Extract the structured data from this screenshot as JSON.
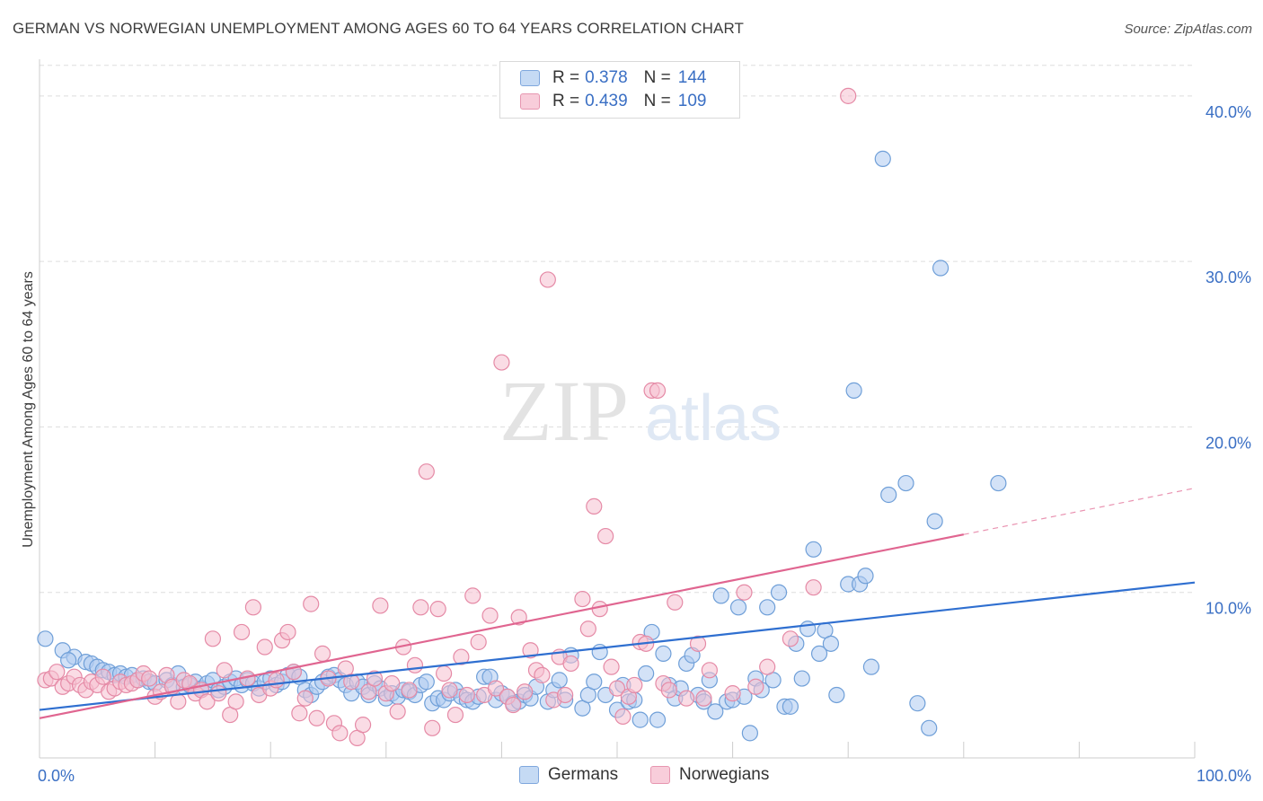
{
  "title": "GERMAN VS NORWEGIAN UNEMPLOYMENT AMONG AGES 60 TO 64 YEARS CORRELATION CHART",
  "source": "Source: ZipAtlas.com",
  "watermark": {
    "zip": "ZIP",
    "atlas": "atlas"
  },
  "colors": {
    "germans_fill": "#aecbf0",
    "germans_stroke": "#6f9fd8",
    "germans_line": "#2f6fd0",
    "norwegians_fill": "#f6c0d0",
    "norwegians_stroke": "#e58aa6",
    "norwegians_line": "#e06590",
    "axis_text": "#3a6fc4",
    "grid": "#dddddd"
  },
  "legend": {
    "rows": [
      {
        "r_label": "R =",
        "r_value": "0.378",
        "n_label": "N =",
        "n_value": "144"
      },
      {
        "r_label": "R =",
        "r_value": "0.439",
        "n_label": "N =",
        "n_value": "109"
      }
    ]
  },
  "chart_data": {
    "type": "scatter",
    "title": "GERMAN VS NORWEGIAN UNEMPLOYMENT AMONG AGES 60 TO 64 YEARS CORRELATION CHART",
    "xlabel": "",
    "ylabel": "Unemployment Among Ages 60 to 64 years",
    "xlim": [
      0,
      100
    ],
    "ylim": [
      0,
      42
    ],
    "x_tick_labels": [
      "0.0%",
      "100.0%"
    ],
    "y_ticks": [
      10,
      20,
      30,
      40
    ],
    "y_tick_labels": [
      "10.0%",
      "20.0%",
      "30.0%",
      "40.0%"
    ],
    "grid": true,
    "legend_position": "bottom",
    "series": [
      {
        "name": "Germans",
        "r": 0.378,
        "n": 144,
        "trend": {
          "x": [
            0,
            100
          ],
          "y": [
            2.9,
            10.6
          ]
        },
        "points": [
          [
            0.5,
            7.2
          ],
          [
            2,
            6.5
          ],
          [
            3,
            6.1
          ],
          [
            2.5,
            5.9
          ],
          [
            4,
            5.8
          ],
          [
            4.5,
            5.7
          ],
          [
            5,
            5.5
          ],
          [
            5.5,
            5.3
          ],
          [
            6,
            5.2
          ],
          [
            6.5,
            5.0
          ],
          [
            7,
            5.1
          ],
          [
            7.5,
            4.9
          ],
          [
            8,
            5.0
          ],
          [
            8.5,
            4.7
          ],
          [
            9,
            4.8
          ],
          [
            9.5,
            4.6
          ],
          [
            10,
            4.5
          ],
          [
            11,
            4.7
          ],
          [
            11.5,
            4.4
          ],
          [
            12,
            5.1
          ],
          [
            12.5,
            4.3
          ],
          [
            13,
            4.4
          ],
          [
            13.5,
            4.6
          ],
          [
            14,
            4.2
          ],
          [
            14.5,
            4.5
          ],
          [
            15,
            4.7
          ],
          [
            15.5,
            4.1
          ],
          [
            16,
            4.3
          ],
          [
            16.5,
            4.6
          ],
          [
            17,
            4.8
          ],
          [
            17.5,
            4.4
          ],
          [
            18,
            4.7
          ],
          [
            18.5,
            4.5
          ],
          [
            19,
            4.2
          ],
          [
            19.5,
            4.6
          ],
          [
            20,
            4.8
          ],
          [
            20.5,
            4.4
          ],
          [
            21,
            4.6
          ],
          [
            21.5,
            5.0
          ],
          [
            22,
            5.2
          ],
          [
            22.5,
            4.9
          ],
          [
            23,
            4.1
          ],
          [
            23.5,
            3.8
          ],
          [
            24,
            4.3
          ],
          [
            24.5,
            4.6
          ],
          [
            25,
            4.9
          ],
          [
            25.5,
            5.0
          ],
          [
            26,
            4.7
          ],
          [
            26.5,
            4.4
          ],
          [
            27,
            3.9
          ],
          [
            27.5,
            4.6
          ],
          [
            28,
            4.3
          ],
          [
            28.5,
            3.8
          ],
          [
            29,
            4.5
          ],
          [
            29.5,
            4.2
          ],
          [
            30,
            3.6
          ],
          [
            30.5,
            3.9
          ],
          [
            31,
            3.7
          ],
          [
            31.5,
            4.1
          ],
          [
            32,
            4.0
          ],
          [
            32.5,
            3.8
          ],
          [
            33,
            4.4
          ],
          [
            33.5,
            4.6
          ],
          [
            34,
            3.3
          ],
          [
            34.5,
            3.6
          ],
          [
            35,
            3.5
          ],
          [
            35.5,
            3.9
          ],
          [
            36,
            4.1
          ],
          [
            36.5,
            3.7
          ],
          [
            37,
            3.5
          ],
          [
            37.5,
            3.4
          ],
          [
            38,
            3.7
          ],
          [
            38.5,
            4.9
          ],
          [
            39,
            4.9
          ],
          [
            39.5,
            3.5
          ],
          [
            40,
            3.9
          ],
          [
            40.5,
            3.7
          ],
          [
            41,
            3.3
          ],
          [
            41.5,
            3.4
          ],
          [
            42,
            3.8
          ],
          [
            42.5,
            3.6
          ],
          [
            43,
            4.3
          ],
          [
            44,
            3.4
          ],
          [
            44.5,
            4.1
          ],
          [
            45,
            4.7
          ],
          [
            45.5,
            3.5
          ],
          [
            46,
            6.2
          ],
          [
            47,
            3.0
          ],
          [
            47.5,
            3.8
          ],
          [
            48,
            4.6
          ],
          [
            48.5,
            6.4
          ],
          [
            49,
            3.8
          ],
          [
            50,
            2.9
          ],
          [
            50.5,
            4.4
          ],
          [
            51,
            3.4
          ],
          [
            51.5,
            3.5
          ],
          [
            52,
            2.3
          ],
          [
            52.5,
            5.1
          ],
          [
            53,
            7.6
          ],
          [
            53.5,
            2.3
          ],
          [
            54,
            6.3
          ],
          [
            54.5,
            4.4
          ],
          [
            55,
            3.6
          ],
          [
            55.5,
            4.2
          ],
          [
            56,
            5.7
          ],
          [
            56.5,
            6.2
          ],
          [
            57,
            3.8
          ],
          [
            57.5,
            3.4
          ],
          [
            58,
            4.7
          ],
          [
            58.5,
            2.8
          ],
          [
            59,
            9.8
          ],
          [
            59.5,
            3.4
          ],
          [
            60,
            3.5
          ],
          [
            60.5,
            9.1
          ],
          [
            61,
            3.7
          ],
          [
            61.5,
            1.5
          ],
          [
            62,
            4.8
          ],
          [
            62.5,
            4.1
          ],
          [
            63,
            9.1
          ],
          [
            63.5,
            4.7
          ],
          [
            64,
            10.0
          ],
          [
            64.5,
            3.1
          ],
          [
            65,
            3.1
          ],
          [
            65.5,
            6.9
          ],
          [
            66,
            4.8
          ],
          [
            66.5,
            7.8
          ],
          [
            67,
            12.6
          ],
          [
            67.5,
            6.3
          ],
          [
            68,
            7.7
          ],
          [
            68.5,
            6.9
          ],
          [
            69,
            3.8
          ],
          [
            70,
            10.5
          ],
          [
            70.5,
            22.2
          ],
          [
            71,
            10.5
          ],
          [
            71.5,
            11.0
          ],
          [
            72,
            5.5
          ],
          [
            73,
            36.2
          ],
          [
            73.5,
            15.9
          ],
          [
            75,
            16.6
          ],
          [
            76,
            3.3
          ],
          [
            77,
            1.8
          ],
          [
            77.5,
            14.3
          ],
          [
            78,
            29.6
          ],
          [
            83,
            16.6
          ]
        ]
      },
      {
        "name": "Norwegians",
        "r": 0.439,
        "n": 109,
        "trend": {
          "x": [
            0,
            80
          ],
          "y": [
            2.4,
            13.5
          ]
        },
        "trend_dashed": {
          "x": [
            80,
            100
          ],
          "y": [
            13.5,
            16.3
          ]
        },
        "points": [
          [
            0.5,
            4.7
          ],
          [
            1,
            4.8
          ],
          [
            1.5,
            5.2
          ],
          [
            2,
            4.3
          ],
          [
            2.5,
            4.5
          ],
          [
            3,
            4.9
          ],
          [
            3.5,
            4.4
          ],
          [
            4,
            4.1
          ],
          [
            4.5,
            4.6
          ],
          [
            5,
            4.4
          ],
          [
            5.5,
            4.9
          ],
          [
            6,
            4.0
          ],
          [
            6.5,
            4.2
          ],
          [
            7,
            4.6
          ],
          [
            7.5,
            4.4
          ],
          [
            8,
            4.5
          ],
          [
            8.5,
            4.7
          ],
          [
            9,
            5.1
          ],
          [
            9.5,
            4.8
          ],
          [
            10,
            3.7
          ],
          [
            10.5,
            4.0
          ],
          [
            11,
            5.0
          ],
          [
            11.5,
            4.3
          ],
          [
            12,
            3.4
          ],
          [
            12.5,
            4.7
          ],
          [
            13,
            4.5
          ],
          [
            13.5,
            3.9
          ],
          [
            14,
            4.1
          ],
          [
            14.5,
            3.4
          ],
          [
            15,
            7.2
          ],
          [
            15.5,
            3.9
          ],
          [
            16,
            5.3
          ],
          [
            16.5,
            2.6
          ],
          [
            17,
            3.4
          ],
          [
            17.5,
            7.6
          ],
          [
            18,
            4.8
          ],
          [
            18.5,
            9.1
          ],
          [
            19,
            3.8
          ],
          [
            19.5,
            6.7
          ],
          [
            20,
            4.2
          ],
          [
            20.5,
            4.7
          ],
          [
            21,
            7.1
          ],
          [
            21.5,
            7.6
          ],
          [
            22,
            5.2
          ],
          [
            22.5,
            2.7
          ],
          [
            23,
            3.6
          ],
          [
            23.5,
            9.3
          ],
          [
            24,
            2.4
          ],
          [
            24.5,
            6.3
          ],
          [
            25,
            4.8
          ],
          [
            25.5,
            2.1
          ],
          [
            26,
            1.5
          ],
          [
            26.5,
            5.4
          ],
          [
            27,
            4.6
          ],
          [
            27.5,
            1.2
          ],
          [
            28,
            2.0
          ],
          [
            28.5,
            4.0
          ],
          [
            29,
            4.8
          ],
          [
            29.5,
            9.2
          ],
          [
            30,
            3.9
          ],
          [
            30.5,
            4.5
          ],
          [
            31,
            2.8
          ],
          [
            31.5,
            6.7
          ],
          [
            32,
            4.1
          ],
          [
            32.5,
            5.6
          ],
          [
            33,
            9.1
          ],
          [
            33.5,
            17.3
          ],
          [
            34,
            1.8
          ],
          [
            34.5,
            9.0
          ],
          [
            35,
            5.1
          ],
          [
            35.5,
            4.1
          ],
          [
            36,
            2.6
          ],
          [
            36.5,
            6.1
          ],
          [
            37,
            3.8
          ],
          [
            37.5,
            9.8
          ],
          [
            38,
            7.0
          ],
          [
            38.5,
            3.8
          ],
          [
            39,
            8.6
          ],
          [
            39.5,
            4.2
          ],
          [
            40,
            23.9
          ],
          [
            40.5,
            3.7
          ],
          [
            41,
            3.2
          ],
          [
            41.5,
            8.5
          ],
          [
            42,
            4.0
          ],
          [
            42.5,
            6.5
          ],
          [
            43,
            5.3
          ],
          [
            43.5,
            5.0
          ],
          [
            44,
            28.9
          ],
          [
            44.5,
            3.5
          ],
          [
            45,
            6.1
          ],
          [
            45.5,
            3.8
          ],
          [
            46,
            5.7
          ],
          [
            47,
            9.6
          ],
          [
            47.5,
            7.8
          ],
          [
            48,
            15.2
          ],
          [
            48.5,
            9.0
          ],
          [
            49,
            13.4
          ],
          [
            49.5,
            5.5
          ],
          [
            50,
            4.2
          ],
          [
            50.5,
            2.5
          ],
          [
            51,
            3.7
          ],
          [
            51.5,
            4.4
          ],
          [
            52,
            7.0
          ],
          [
            52.5,
            6.9
          ],
          [
            53,
            22.2
          ],
          [
            53.5,
            22.2
          ],
          [
            54,
            4.5
          ],
          [
            54.5,
            4.1
          ],
          [
            55,
            9.4
          ],
          [
            56,
            3.6
          ],
          [
            57,
            6.9
          ],
          [
            57.5,
            3.6
          ],
          [
            58,
            5.3
          ],
          [
            60,
            3.9
          ],
          [
            61,
            10.0
          ],
          [
            62,
            4.3
          ],
          [
            63,
            5.5
          ],
          [
            65,
            7.2
          ],
          [
            67,
            10.3
          ],
          [
            70,
            40.0
          ]
        ]
      }
    ]
  },
  "bottom_legend": {
    "germans": "Germans",
    "norwegians": "Norwegians"
  }
}
